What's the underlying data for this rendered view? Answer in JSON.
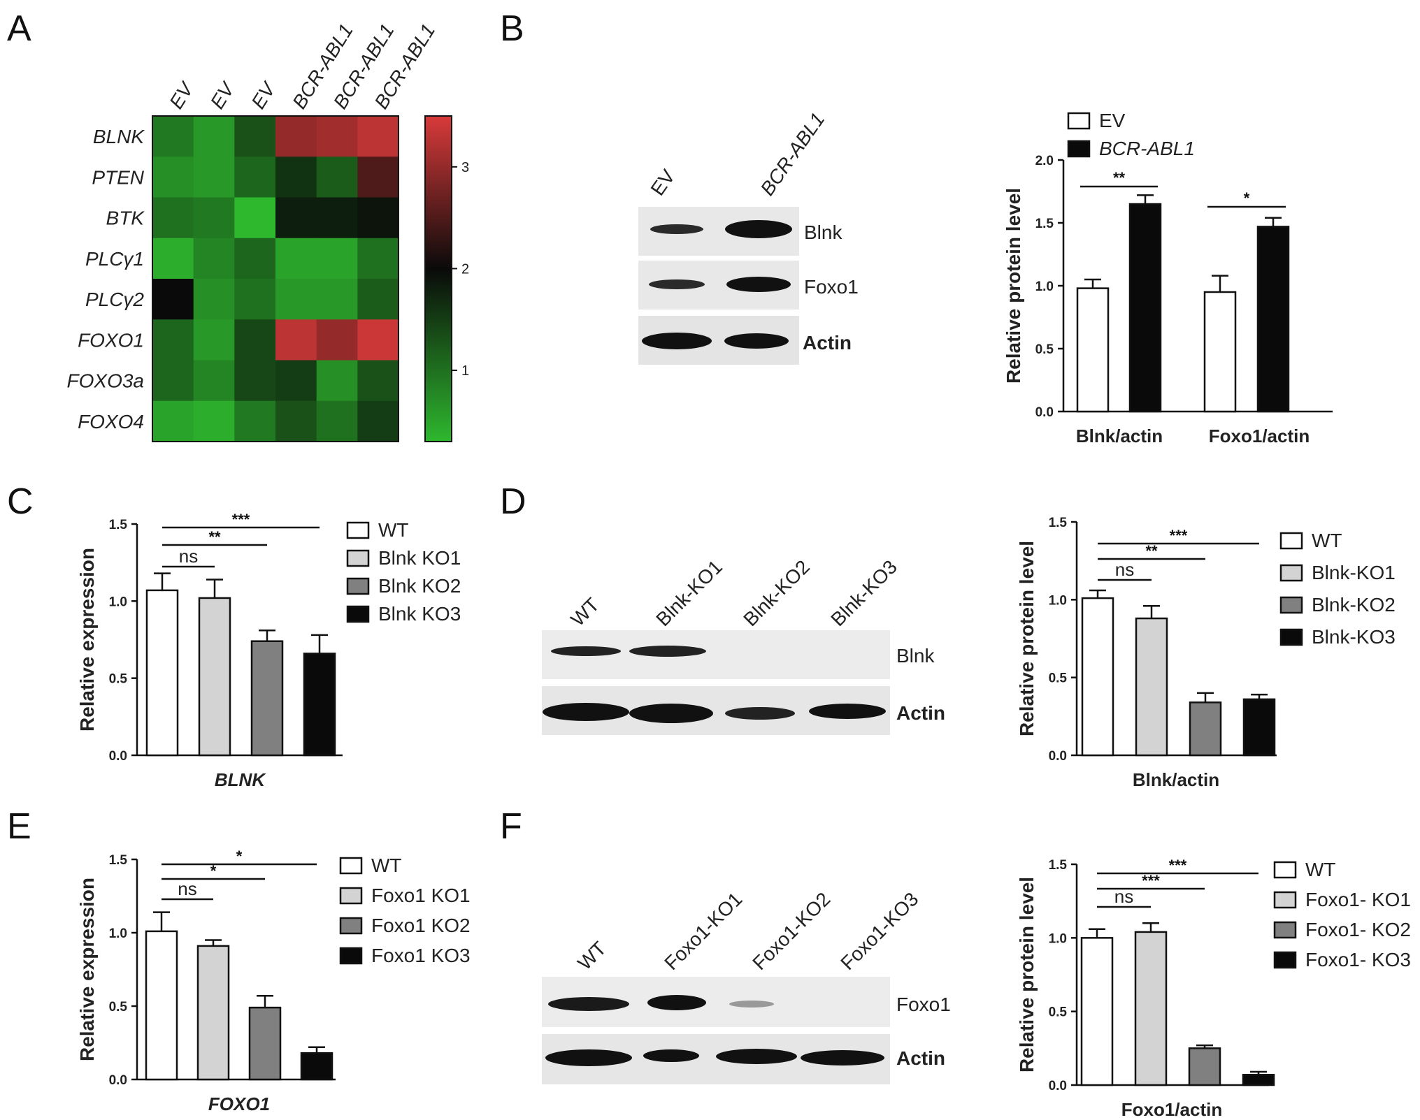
{
  "panels": {
    "A": "A",
    "B": "B",
    "C": "C",
    "D": "D",
    "E": "E",
    "F": "F"
  },
  "colors": {
    "wt": "#ffffff",
    "ko1": "#d3d3d3",
    "ko2": "#808080",
    "ko3": "#0a0a0a",
    "ev": "#ffffff",
    "bcr": "#0a0a0a",
    "heat_low": "#2eb82e",
    "heat_mid": "#0a0a0a",
    "heat_high": "#d93a3a",
    "highlight_gene": "#e0192b"
  },
  "chart_data": [
    {
      "id": "A",
      "type": "heatmap",
      "columns": [
        "EV",
        "EV",
        "EV",
        "BCR-ABL1",
        "BCR-ABL1",
        "BCR-ABL1"
      ],
      "rows": [
        "BLNK",
        "PTEN",
        "BTK",
        "PLCγ1",
        "PLCγ2",
        "FOXO1",
        "FOXO3a",
        "FOXO4"
      ],
      "highlighted_rows": [
        "BLNK",
        "FOXO1"
      ],
      "values": [
        [
          0.9,
          0.6,
          1.3,
          3.0,
          3.1,
          3.3
        ],
        [
          0.7,
          0.6,
          1.1,
          1.6,
          1.2,
          2.5
        ],
        [
          1.0,
          0.9,
          0.3,
          1.8,
          1.8,
          1.9
        ],
        [
          0.4,
          0.8,
          1.1,
          0.5,
          0.5,
          1.0
        ],
        [
          2.0,
          0.7,
          1.0,
          0.6,
          0.6,
          1.2
        ],
        [
          1.1,
          0.6,
          1.4,
          3.3,
          3.0,
          3.4
        ],
        [
          1.1,
          0.8,
          1.4,
          1.5,
          0.7,
          1.3
        ],
        [
          0.5,
          0.4,
          0.9,
          1.3,
          1.0,
          1.5
        ]
      ],
      "colorbar_ticks": [
        "1",
        "2",
        "3"
      ],
      "colorbar_range": [
        0.3,
        3.5
      ]
    },
    {
      "id": "B",
      "type": "bar",
      "categories": [
        "Blnk/actin",
        "Foxo1/actin"
      ],
      "series": [
        {
          "name": "EV",
          "values": [
            0.98,
            0.95
          ],
          "errors": [
            0.07,
            0.13
          ],
          "color": "#ffffff"
        },
        {
          "name": "BCR-ABL1",
          "values": [
            1.65,
            1.47
          ],
          "errors": [
            0.07,
            0.07
          ],
          "color": "#0a0a0a"
        }
      ],
      "ylabel": "Relative protein level",
      "ylim": [
        0,
        2.0
      ],
      "yticks": [
        "0.0",
        "0.5",
        "1.0",
        "1.5",
        "2.0"
      ],
      "significance": [
        "**",
        "*"
      ],
      "blot": {
        "lanes": [
          "EV",
          "BCR-ABL1"
        ],
        "bands": [
          "Blnk",
          "Foxo1",
          "Actin"
        ]
      }
    },
    {
      "id": "C",
      "type": "bar",
      "categories": [
        "BLNK"
      ],
      "series": [
        {
          "name": "WT",
          "values": [
            1.07
          ],
          "errors": [
            0.11
          ]
        },
        {
          "name": "Blnk KO1",
          "values": [
            1.02
          ],
          "errors": [
            0.12
          ]
        },
        {
          "name": "Blnk KO2",
          "values": [
            0.74
          ],
          "errors": [
            0.07
          ]
        },
        {
          "name": "Blnk KO3",
          "values": [
            0.66
          ],
          "errors": [
            0.12
          ]
        }
      ],
      "xlabel": "BLNK",
      "ylabel": "Relative expression",
      "ylim": [
        0,
        1.5
      ],
      "yticks": [
        "0.0",
        "0.5",
        "1.0",
        "1.5"
      ],
      "comparisons": [
        {
          "label": "ns",
          "to": 1
        },
        {
          "label": "**",
          "to": 2
        },
        {
          "label": "***",
          "to": 3
        }
      ]
    },
    {
      "id": "D",
      "type": "bar",
      "categories": [
        "Blnk/actin"
      ],
      "series": [
        {
          "name": "WT",
          "values": [
            1.01
          ],
          "errors": [
            0.05
          ]
        },
        {
          "name": "Blnk-KO1",
          "values": [
            0.88
          ],
          "errors": [
            0.08
          ]
        },
        {
          "name": "Blnk-KO2",
          "values": [
            0.34
          ],
          "errors": [
            0.06
          ]
        },
        {
          "name": "Blnk-KO3",
          "values": [
            0.36
          ],
          "errors": [
            0.03
          ]
        }
      ],
      "xlabel": "Blnk/actin",
      "ylabel": "Relative protein level",
      "ylim": [
        0,
        1.5
      ],
      "yticks": [
        "0.0",
        "0.5",
        "1.0",
        "1.5"
      ],
      "comparisons": [
        {
          "label": "ns",
          "to": 1
        },
        {
          "label": "**",
          "to": 2
        },
        {
          "label": "***",
          "to": 3
        }
      ],
      "blot": {
        "lanes": [
          "WT",
          "Blnk-KO1",
          "Blnk-KO2",
          "Blnk-KO3"
        ],
        "bands": [
          "Blnk",
          "Actin"
        ]
      }
    },
    {
      "id": "E",
      "type": "bar",
      "categories": [
        "FOXO1"
      ],
      "series": [
        {
          "name": "WT",
          "values": [
            1.01
          ],
          "errors": [
            0.13
          ]
        },
        {
          "name": "Foxo1 KO1",
          "values": [
            0.91
          ],
          "errors": [
            0.04
          ]
        },
        {
          "name": "Foxo1 KO2",
          "values": [
            0.49
          ],
          "errors": [
            0.08
          ]
        },
        {
          "name": "Foxo1 KO3",
          "values": [
            0.18
          ],
          "errors": [
            0.04
          ]
        }
      ],
      "xlabel": "FOXO1",
      "ylabel": "Relative expression",
      "ylim": [
        0,
        1.5
      ],
      "yticks": [
        "0.0",
        "0.5",
        "1.0",
        "1.5"
      ],
      "comparisons": [
        {
          "label": "ns",
          "to": 1
        },
        {
          "label": "*",
          "to": 2
        },
        {
          "label": "*",
          "to": 3
        }
      ]
    },
    {
      "id": "F",
      "type": "bar",
      "categories": [
        "Foxo1/actin"
      ],
      "series": [
        {
          "name": "WT",
          "values": [
            1.0
          ],
          "errors": [
            0.06
          ]
        },
        {
          "name": "Foxo1- KO1",
          "values": [
            1.04
          ],
          "errors": [
            0.06
          ]
        },
        {
          "name": "Foxo1- KO2",
          "values": [
            0.25
          ],
          "errors": [
            0.02
          ]
        },
        {
          "name": "Foxo1- KO3",
          "values": [
            0.07
          ],
          "errors": [
            0.02
          ]
        }
      ],
      "xlabel": "Foxo1/actin",
      "ylabel": "Relative protein level",
      "ylim": [
        0,
        1.5
      ],
      "yticks": [
        "0.0",
        "0.5",
        "1.0",
        "1.5"
      ],
      "comparisons": [
        {
          "label": "ns",
          "to": 1
        },
        {
          "label": "***",
          "to": 2
        },
        {
          "label": "***",
          "to": 3
        }
      ],
      "blot": {
        "lanes": [
          "WT",
          "Foxo1-KO1",
          "Foxo1-KO2",
          "Foxo1-KO3"
        ],
        "bands": [
          "Foxo1",
          "Actin"
        ]
      }
    }
  ]
}
